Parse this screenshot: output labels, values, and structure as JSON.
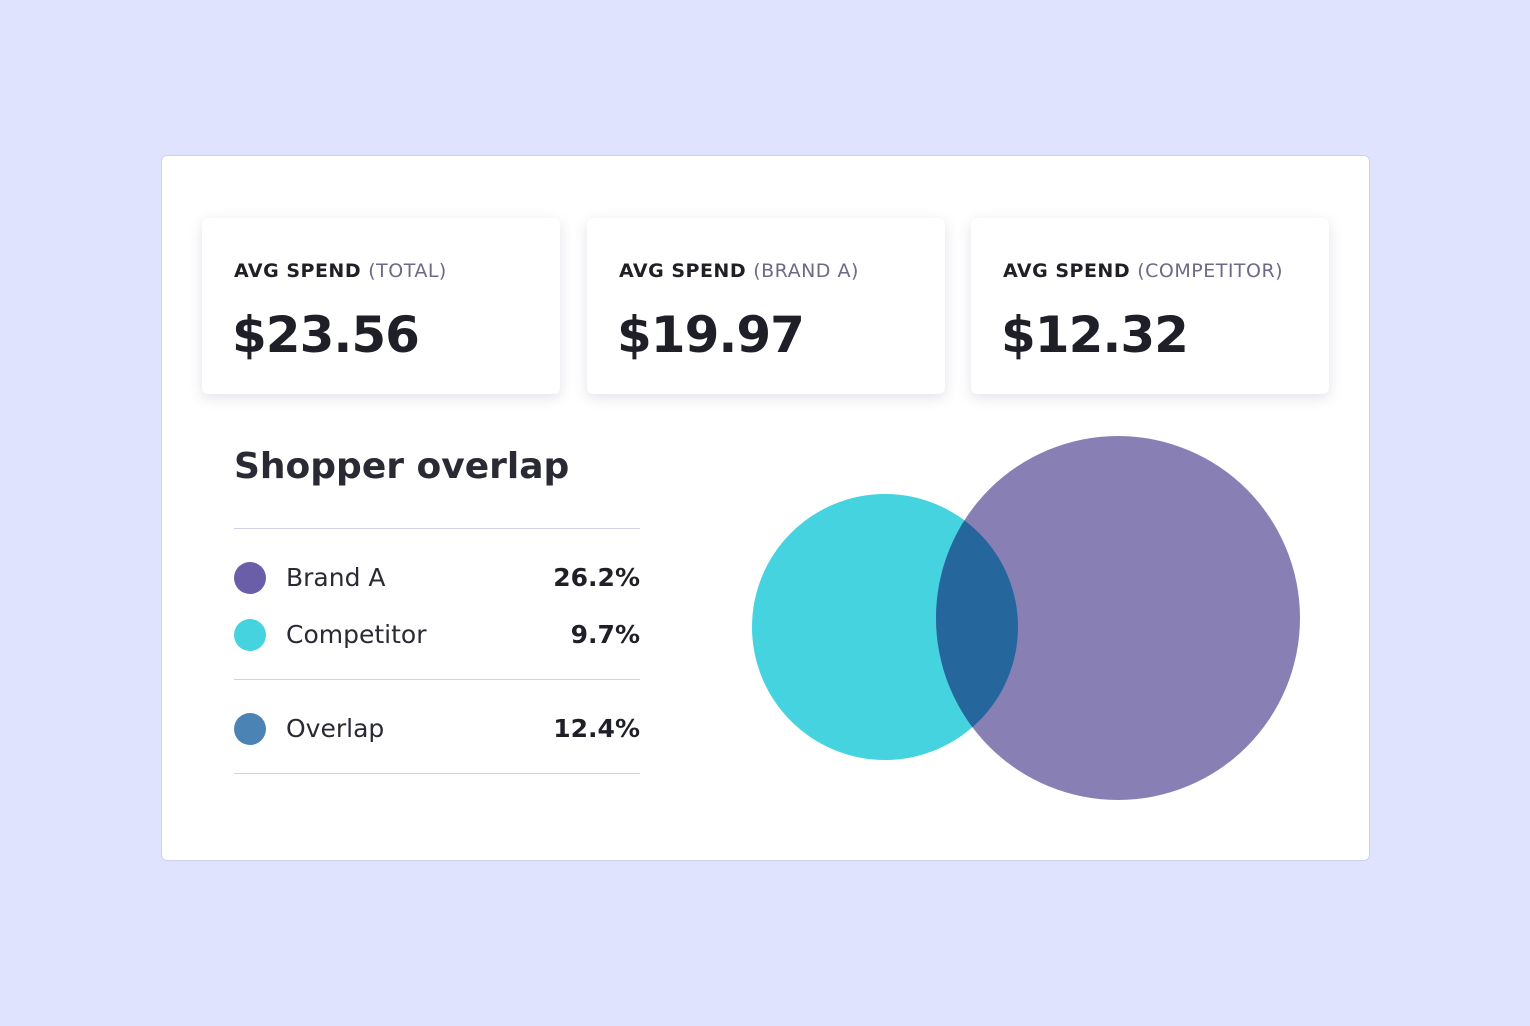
{
  "cards": [
    {
      "label": "AVG SPEND",
      "qualifier": "(TOTAL)",
      "value": "$23.56"
    },
    {
      "label": "AVG SPEND",
      "qualifier": "(BRAND A)",
      "value": "$19.97"
    },
    {
      "label": "AVG SPEND",
      "qualifier": "(COMPETITOR)",
      "value": "$12.32"
    }
  ],
  "overlap": {
    "title": "Shopper overlap",
    "rows": [
      {
        "name": "Brand A",
        "value": "26.2%"
      },
      {
        "name": "Competitor",
        "value": "9.7%"
      },
      {
        "name": "Overlap",
        "value": "12.4%"
      }
    ]
  }
}
